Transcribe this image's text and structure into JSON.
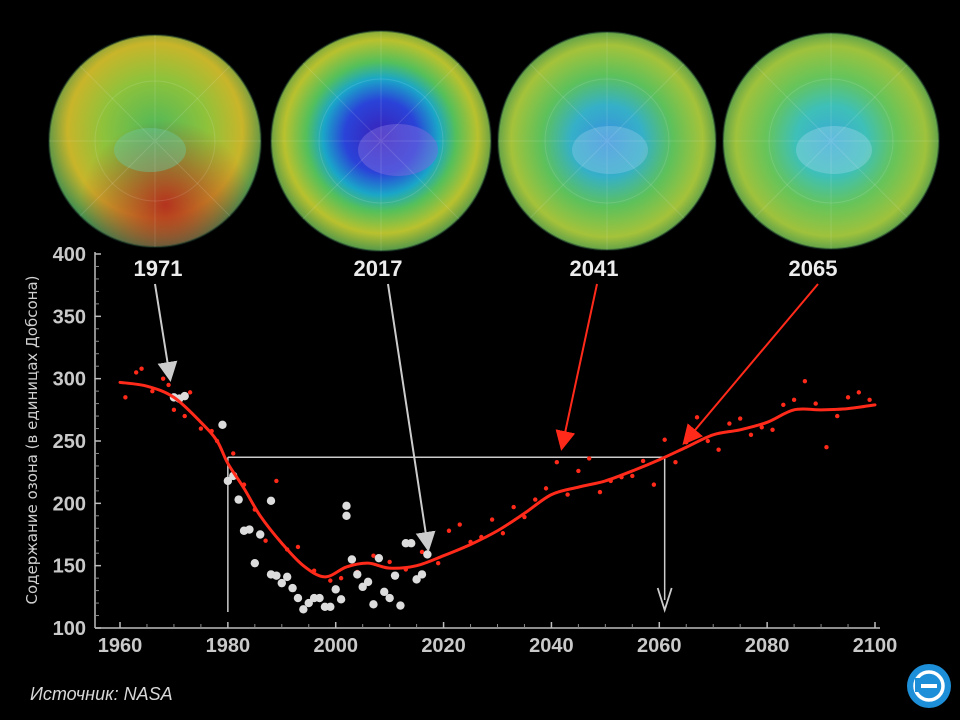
{
  "source_text": "Источник: NASA",
  "colors": {
    "background": "#000000",
    "trend": "#ff2a1a",
    "observed": "#dcdcdc",
    "modeled": "#ff2a1a",
    "reference": "#cccccc",
    "axis_text": "#c9c9c9",
    "logo": "#1d8fd8"
  },
  "globes": [
    {
      "year": "1971",
      "hole": "none"
    },
    {
      "year": "2017",
      "hole": "deep"
    },
    {
      "year": "2041",
      "hole": "moderate"
    },
    {
      "year": "2065",
      "hole": "light"
    }
  ],
  "chart_data": {
    "type": "line",
    "title": "",
    "xlabel": "",
    "ylabel": "Содержание озона (в единицах Добсона)",
    "xlim": [
      1960,
      2100
    ],
    "ylim": [
      100,
      400
    ],
    "xticks": [
      1960,
      1980,
      2000,
      2020,
      2040,
      2060,
      2080,
      2100
    ],
    "yticks": [
      100,
      150,
      200,
      250,
      300,
      350,
      400
    ],
    "trend_line": {
      "x": [
        1960,
        1965,
        1970,
        1975,
        1978,
        1980,
        1983,
        1986,
        1990,
        1994,
        1998,
        2002,
        2006,
        2010,
        2015,
        2020,
        2025,
        2030,
        2035,
        2040,
        2045,
        2050,
        2055,
        2060,
        2065,
        2070,
        2075,
        2080,
        2085,
        2090,
        2095,
        2100
      ],
      "y": [
        297,
        294,
        285,
        265,
        250,
        232,
        212,
        190,
        168,
        150,
        141,
        149,
        152,
        148,
        150,
        158,
        167,
        178,
        192,
        207,
        213,
        218,
        226,
        235,
        245,
        255,
        259,
        265,
        275,
        275,
        276,
        279
      ]
    },
    "reference_level": 237,
    "reference_start_year": 1980,
    "recovery_year": 2061,
    "observed_points": {
      "x": [
        1970,
        1971,
        1972,
        1979,
        1980,
        1981,
        1982,
        1983,
        1984,
        1985,
        1986,
        1988,
        1988,
        1989,
        1990,
        1991,
        1992,
        1993,
        1994,
        1995,
        1996,
        1997,
        1998,
        1999,
        2000,
        2001,
        2002,
        2002,
        2003,
        2004,
        2005,
        2006,
        2007,
        2008,
        2009,
        2010,
        2011,
        2012,
        2013,
        2014,
        2015,
        2016,
        2017
      ],
      "y": [
        285,
        284,
        286,
        263,
        218,
        222,
        203,
        178,
        179,
        152,
        175,
        202,
        143,
        142,
        136,
        141,
        132,
        124,
        115,
        120,
        124,
        124,
        117,
        117,
        131,
        123,
        198,
        190,
        155,
        143,
        133,
        137,
        119,
        156,
        129,
        124,
        142,
        118,
        168,
        168,
        139,
        143,
        159
      ]
    },
    "modeled_points": {
      "x": [
        1961,
        1963,
        1964,
        1966,
        1968,
        1969,
        1970,
        1972,
        1973,
        1975,
        1977,
        1978,
        1981,
        1983,
        1985,
        1987,
        1989,
        1991,
        1993,
        1996,
        1999,
        2001,
        2004,
        2007,
        2010,
        2013,
        2016,
        2019,
        2021,
        2023,
        2025,
        2027,
        2029,
        2031,
        2033,
        2035,
        2037,
        2039,
        2041,
        2043,
        2045,
        2047,
        2049,
        2051,
        2053,
        2055,
        2057,
        2059,
        2061,
        2063,
        2065,
        2067,
        2069,
        2071,
        2073,
        2075,
        2077,
        2079,
        2081,
        2083,
        2085,
        2087,
        2089,
        2091,
        2093,
        2095,
        2097,
        2099
      ],
      "y": [
        285,
        305,
        308,
        290,
        300,
        295,
        275,
        270,
        289,
        260,
        258,
        250,
        240,
        215,
        195,
        170,
        218,
        163,
        165,
        146,
        138,
        140,
        145,
        158,
        153,
        147,
        161,
        152,
        178,
        183,
        169,
        173,
        187,
        176,
        197,
        189,
        203,
        212,
        233,
        207,
        226,
        236,
        209,
        218,
        221,
        222,
        234,
        215,
        251,
        233,
        249,
        269,
        250,
        243,
        264,
        268,
        255,
        261,
        259,
        279,
        283,
        298,
        280,
        245,
        270,
        285,
        289,
        283
      ]
    }
  }
}
